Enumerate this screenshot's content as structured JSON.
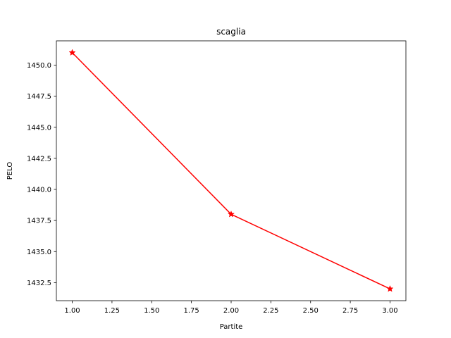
{
  "chart_data": {
    "type": "line",
    "title": "scaglia",
    "xlabel": "Partite",
    "ylabel": "PELO",
    "xlim": [
      0.9,
      3.1
    ],
    "ylim": [
      1431.05,
      1451.95
    ],
    "xticks": [
      1.0,
      1.25,
      1.5,
      1.75,
      2.0,
      2.25,
      2.5,
      2.75,
      3.0
    ],
    "xtick_labels": [
      "1.00",
      "1.25",
      "1.50",
      "1.75",
      "2.00",
      "2.25",
      "2.50",
      "2.75",
      "3.00"
    ],
    "yticks": [
      1432.5,
      1435.0,
      1437.5,
      1440.0,
      1442.5,
      1445.0,
      1447.5,
      1450.0
    ],
    "ytick_labels": [
      "1432.5",
      "1435.0",
      "1437.5",
      "1440.0",
      "1442.5",
      "1445.0",
      "1447.5",
      "1450.0"
    ],
    "grid": false,
    "series": [
      {
        "x": [
          1,
          2,
          3
        ],
        "y": [
          1451,
          1438,
          1432
        ],
        "color": "#ff0000",
        "marker": "star"
      }
    ]
  }
}
